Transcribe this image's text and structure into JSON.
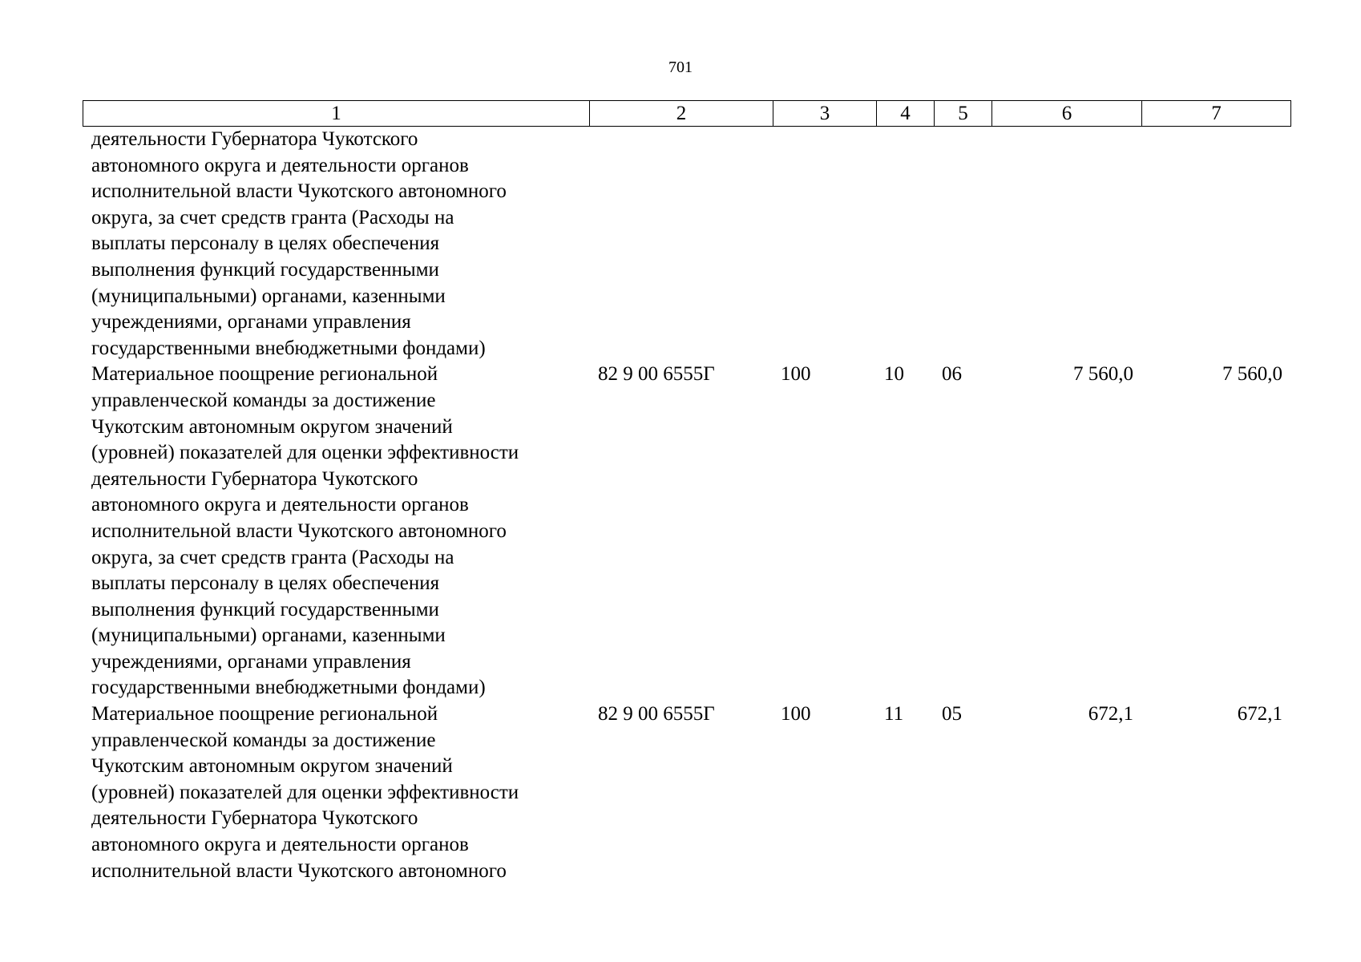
{
  "page_number": "701",
  "columns": [
    "1",
    "2",
    "3",
    "4",
    "5",
    "6",
    "7"
  ],
  "rows": [
    {
      "description": "деятельности Губернатора Чукотского\nавтономного округа и деятельности органов\nисполнительной власти Чукотского автономного\nокруга, за счет средств гранта (Расходы на\nвыплаты персоналу в целях обеспечения\nвыполнения функций государственными\n(муниципальными) органами, казенными\nучреждениями, органами управления\nгосударственными внебюджетными фондами)",
      "code": "",
      "vr": "",
      "rz": "",
      "pr": "",
      "sum6": "",
      "sum7": ""
    },
    {
      "description": "Материальное поощрение региональной\nуправленческой команды за достижение\nЧукотским автономным округом значений\n(уровней) показателей для оценки эффективности\nдеятельности Губернатора Чукотского\nавтономного округа и деятельности органов\nисполнительной власти Чукотского автономного\nокруга, за счет средств гранта (Расходы на\nвыплаты персоналу в целях обеспечения\nвыполнения функций государственными\n(муниципальными) органами, казенными\nучреждениями, органами управления\nгосударственными внебюджетными фондами)",
      "code": "82 9 00 6555Г",
      "vr": "100",
      "rz": "10",
      "pr": "06",
      "sum6": "7 560,0",
      "sum7": "7 560,0"
    },
    {
      "description": "Материальное поощрение региональной\nуправленческой команды за достижение\nЧукотским автономным округом значений\n(уровней) показателей для оценки эффективности\nдеятельности Губернатора Чукотского\nавтономного округа и деятельности органов\nисполнительной власти Чукотского автономного",
      "code": "82 9 00 6555Г",
      "vr": "100",
      "rz": "11",
      "pr": "05",
      "sum6": "672,1",
      "sum7": "672,1"
    }
  ]
}
